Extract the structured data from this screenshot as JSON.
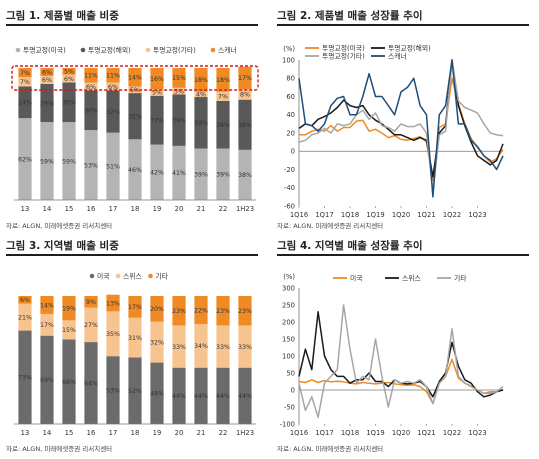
{
  "chart_data": [
    {
      "type": "bar",
      "stacked": true,
      "normalized": true,
      "title": "그림 1. 제품별 매출 비중",
      "source": "자료: ALGN, 미래에셋증권 리서치센터",
      "categories": [
        "13",
        "14",
        "15",
        "16",
        "17",
        "18",
        "19",
        "20",
        "21",
        "22",
        "1H23"
      ],
      "series": [
        {
          "name": "투명교정(미국)",
          "color": "#b4b4b4",
          "values": [
            62,
            59,
            59,
            53,
            51,
            46,
            42,
            41,
            39,
            39,
            38
          ]
        },
        {
          "name": "투명교정(해외)",
          "color": "#595959",
          "values": [
            24,
            29,
            30,
            30,
            32,
            35,
            37,
            39,
            39,
            36,
            38
          ]
        },
        {
          "name": "투명교정(기타)",
          "color": "#f7c38e",
          "values": [
            7,
            6,
            6,
            6,
            6,
            5,
            5,
            5,
            4,
            7,
            8
          ]
        },
        {
          "name": "스캐너",
          "color": "#ef8a25",
          "values": [
            7,
            6,
            5,
            11,
            11,
            14,
            16,
            15,
            18,
            18,
            17
          ]
        }
      ],
      "legend_position": "top",
      "highlight": "dashed-box-top-row"
    },
    {
      "type": "line",
      "title": "그림 2. 제품별 매출 성장률 추이",
      "source": "자료: ALGN, 미래에셋증권 리서치센터",
      "ylabel": "(%)",
      "ylim": [
        -60,
        100
      ],
      "yticks": [
        "100",
        "80",
        "60",
        "40",
        "20",
        "0",
        "-20",
        "-40",
        "-60"
      ],
      "xtick_labels": [
        "1Q16",
        "1Q17",
        "1Q18",
        "1Q19",
        "1Q20",
        "1Q21",
        "1Q22",
        "1Q23"
      ],
      "series": [
        {
          "name": "투명교정(미국)",
          "color": "#ef8a25",
          "values": [
            18,
            18,
            22,
            24,
            22,
            28,
            22,
            26,
            26,
            33,
            34,
            22,
            24,
            20,
            15,
            17,
            13,
            12,
            14,
            16,
            10,
            -32,
            26,
            30,
            80,
            52,
            30,
            14,
            4,
            -5,
            -12,
            -8,
            2
          ]
        },
        {
          "name": "투명교정(해외)",
          "color": "#1a1a1a",
          "values": [
            25,
            30,
            28,
            35,
            38,
            42,
            48,
            56,
            50,
            48,
            50,
            40,
            34,
            30,
            24,
            18,
            18,
            15,
            12,
            15,
            12,
            -28,
            20,
            28,
            100,
            50,
            28,
            10,
            -5,
            -10,
            -15,
            -10,
            8
          ]
        },
        {
          "name": "투명교정(기타)",
          "color": "#a6a6a6",
          "values": [
            10,
            12,
            18,
            20,
            25,
            20,
            30,
            28,
            30,
            40,
            45,
            35,
            42,
            28,
            26,
            22,
            30,
            27,
            27,
            30,
            20,
            -44,
            18,
            22,
            105,
            55,
            48,
            45,
            42,
            30,
            20,
            18,
            17
          ]
        },
        {
          "name": "스캐너",
          "color": "#1f4e79",
          "values": [
            80,
            30,
            28,
            22,
            30,
            50,
            58,
            60,
            40,
            40,
            60,
            85,
            60,
            60,
            50,
            40,
            65,
            70,
            80,
            50,
            40,
            -50,
            40,
            50,
            100,
            30,
            30,
            12,
            5,
            -5,
            -10,
            -20,
            -5
          ]
        }
      ]
    },
    {
      "type": "bar",
      "stacked": true,
      "normalized": true,
      "title": "그림 3. 지역별 매출 비중",
      "source": "자료: ALGN, 미래에셋증권 리서치센터",
      "categories": [
        "13",
        "14",
        "15",
        "16",
        "17",
        "18",
        "19",
        "20",
        "21",
        "22",
        "1H23"
      ],
      "series": [
        {
          "name": "미국",
          "color": "#6b6b6b",
          "values": [
            73,
            69,
            66,
            64,
            53,
            52,
            48,
            44,
            44,
            44,
            44
          ]
        },
        {
          "name": "스위스",
          "color": "#f7c38e",
          "values": [
            21,
            17,
            15,
            27,
            35,
            31,
            32,
            33,
            34,
            33,
            33
          ]
        },
        {
          "name": "기타",
          "color": "#ef8a25",
          "values": [
            6,
            14,
            19,
            9,
            13,
            17,
            20,
            23,
            22,
            23,
            23
          ]
        }
      ],
      "legend_position": "top"
    },
    {
      "type": "line",
      "title": "그림 4. 지역별 매출 성장률 추이",
      "source": "자료: ALGN, 미래에셋증권 리서치센터",
      "ylabel": "(%)",
      "ylim": [
        -100,
        300
      ],
      "yticks": [
        "300",
        "250",
        "200",
        "150",
        "100",
        "50",
        "0",
        "-50",
        "-100"
      ],
      "xtick_labels": [
        "1Q16",
        "1Q17",
        "1Q18",
        "1Q19",
        "1Q20",
        "1Q21",
        "1Q22",
        "1Q23"
      ],
      "series": [
        {
          "name": "미국",
          "color": "#ef8a25",
          "values": [
            25,
            22,
            30,
            22,
            28,
            24,
            26,
            24,
            20,
            18,
            22,
            20,
            18,
            20,
            22,
            18,
            16,
            14,
            16,
            10,
            -5,
            -40,
            20,
            40,
            90,
            35,
            20,
            12,
            0,
            -10,
            -5,
            -5,
            2
          ]
        },
        {
          "name": "스위스",
          "color": "#1a1a1a",
          "values": [
            40,
            120,
            60,
            230,
            100,
            60,
            40,
            40,
            20,
            30,
            30,
            50,
            25,
            25,
            10,
            30,
            20,
            18,
            20,
            25,
            10,
            -20,
            25,
            50,
            140,
            70,
            30,
            20,
            -5,
            -20,
            -15,
            -5,
            0
          ]
        },
        {
          "name": "기타",
          "color": "#a6a6a6",
          "values": [
            20,
            -60,
            -20,
            -80,
            20,
            40,
            60,
            250,
            120,
            20,
            40,
            30,
            150,
            40,
            -50,
            30,
            20,
            25,
            20,
            30,
            10,
            -40,
            20,
            40,
            180,
            40,
            20,
            10,
            0,
            -10,
            -10,
            -5,
            10
          ]
        }
      ]
    }
  ]
}
